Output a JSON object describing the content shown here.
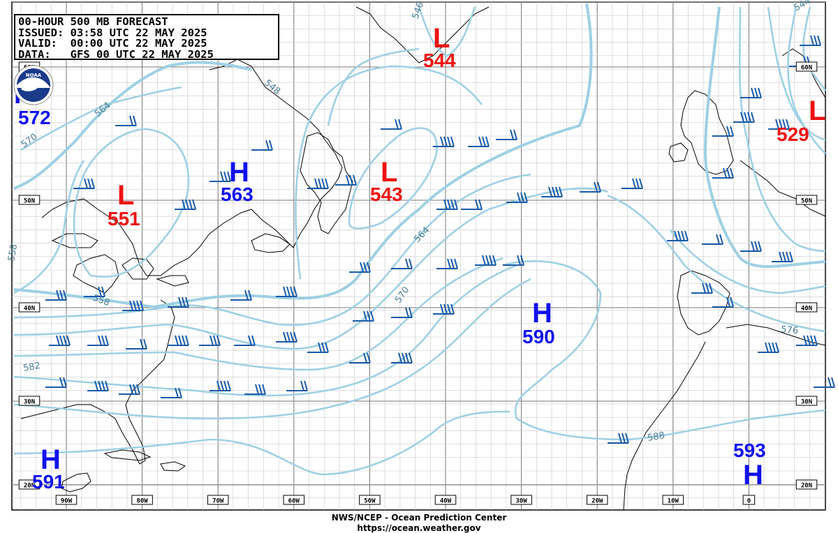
{
  "header": {
    "line1": "00-HOUR 500 MB FORECAST",
    "line2": "ISSUED: 03:58 UTC 22 MAY 2025",
    "line3": "VALID:  00:00 UTC 22 MAY 2025",
    "line4": "DATA:   GFS 00 UTC 22 MAY 2025"
  },
  "logo_text": "NOAA",
  "footer": {
    "line1": "NWS/NCEP - Ocean Prediction Center",
    "line2": "https://ocean.weather.gov"
  },
  "colors": {
    "contour": "#9fd0e3",
    "contour_label": "#4a7f94",
    "high": "#1010ee",
    "low": "#ee1111",
    "barb": "#1a5aa8",
    "coast": "#000000",
    "grid": "#999999"
  },
  "longitude_labels": [
    "90W",
    "80W",
    "70W",
    "60W",
    "50W",
    "40W",
    "30W",
    "20W",
    "10W",
    "0"
  ],
  "latitude_labels": [
    "60N",
    "50N",
    "40N",
    "30N",
    "20N"
  ],
  "contour_labels": [
    "546",
    "548",
    "564",
    "570",
    "558",
    "558",
    "564",
    "570",
    "582",
    "576",
    "588",
    "544"
  ],
  "pressure_centers": [
    {
      "type": "H",
      "value": "572",
      "kind": "high"
    },
    {
      "type": "L",
      "value": "551",
      "kind": "low"
    },
    {
      "type": "H",
      "value": "563",
      "kind": "high"
    },
    {
      "type": "L",
      "value": "544",
      "kind": "low"
    },
    {
      "type": "L",
      "value": "543",
      "kind": "low"
    },
    {
      "type": "L",
      "value": "529",
      "kind": "low"
    },
    {
      "type": "H",
      "value": "590",
      "kind": "high"
    },
    {
      "type": "H",
      "value": "591",
      "kind": "high"
    },
    {
      "type": "H",
      "value": "593",
      "kind": "high"
    }
  ]
}
